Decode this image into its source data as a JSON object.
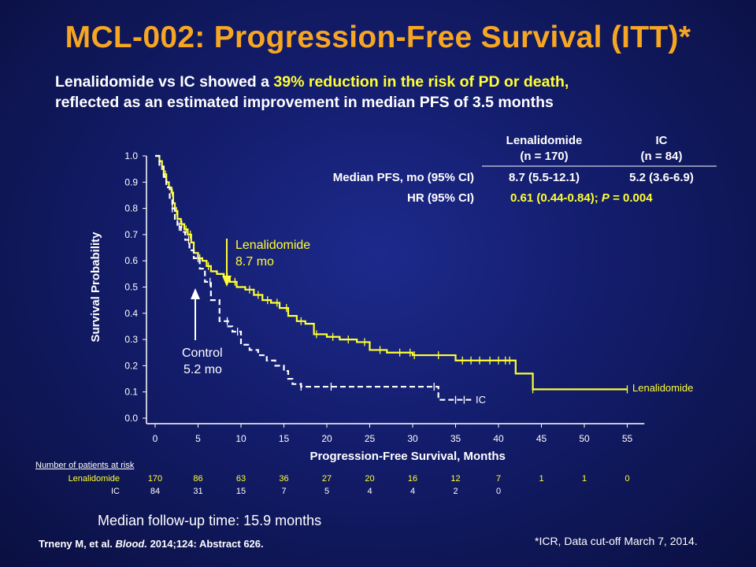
{
  "title": "MCL-002: Progression-Free Survival (ITT)*",
  "subtitle": {
    "line1_pre": "Lenalidomide vs IC showed a ",
    "line1_pct": "39%",
    "line1_post": " reduction in the risk of PD or death,",
    "line2": "reflected as an estimated improvement in median PFS of 3.5 months"
  },
  "stats_table": {
    "col1_header": "Lenalidomide",
    "col1_n": "(n = 170)",
    "col2_header": "IC",
    "col2_n": "(n = 84)",
    "row1_label": "Median PFS, mo (95% CI)",
    "row1_col1": "8.7 (5.5-12.1)",
    "row1_col2": "5.2 (3.6-6.9)",
    "row2_label": "HR (95% CI)",
    "row2_value_pre": "0.61 (0.44-0.84); ",
    "row2_value_p": "P",
    "row2_value_post": " = 0.004"
  },
  "annotations": {
    "len_label": "Lenalidomide",
    "len_value": "8.7 mo",
    "ctrl_label": "Control",
    "ctrl_value": "5.2 mo",
    "len_end_label": "Lenalidomide",
    "ic_end_label": "IC"
  },
  "risk_table": {
    "title": "Number of patients at risk",
    "rows": [
      {
        "label": "Lenalidomide",
        "values": [
          "170",
          "86",
          "63",
          "36",
          "27",
          "20",
          "16",
          "12",
          "7",
          "1",
          "1",
          "0"
        ]
      },
      {
        "label": "IC",
        "values": [
          "84",
          "31",
          "15",
          "7",
          "5",
          "4",
          "4",
          "2",
          "0"
        ]
      }
    ]
  },
  "followup": "Median follow-up time: 15.9 months",
  "citation": {
    "pre": "Trneny M, et al. ",
    "journal": "Blood.",
    "post": " 2014;124: Abstract 626."
  },
  "footnote": "*ICR, Data cut-off March 7, 2014.",
  "colors": {
    "background": "#131c6a",
    "title": "#f6a623",
    "lenalidomide": "#ffff33",
    "ic": "#ffffff"
  },
  "chart_data": {
    "type": "line",
    "xlabel": "Progression-Free Survival, Months",
    "ylabel": "Survival Probability",
    "xlim": [
      0,
      57
    ],
    "ylim": [
      0,
      1.0
    ],
    "x_ticks": [
      0,
      5,
      10,
      15,
      20,
      25,
      30,
      35,
      40,
      45,
      50,
      55
    ],
    "y_ticks": [
      0.0,
      0.1,
      0.2,
      0.3,
      0.4,
      0.5,
      0.6,
      0.7,
      0.8,
      0.9,
      1.0
    ],
    "y_tick_labels": [
      "0.0",
      "0.1",
      "0.2",
      "0.3",
      "0.4",
      "0.5",
      "0.6",
      "0.7",
      "0.8",
      "0.9",
      "1.0"
    ],
    "series": [
      {
        "name": "Lenalidomide",
        "color": "#ffff33",
        "style": "solid",
        "points": [
          [
            0,
            1.0
          ],
          [
            0.5,
            0.98
          ],
          [
            0.8,
            0.95
          ],
          [
            1.0,
            0.93
          ],
          [
            1.3,
            0.9
          ],
          [
            1.6,
            0.88
          ],
          [
            1.9,
            0.86
          ],
          [
            2.1,
            0.82
          ],
          [
            2.3,
            0.79
          ],
          [
            2.6,
            0.76
          ],
          [
            3.0,
            0.74
          ],
          [
            3.4,
            0.72
          ],
          [
            3.8,
            0.7
          ],
          [
            4.2,
            0.67
          ],
          [
            4.5,
            0.63
          ],
          [
            5.0,
            0.61
          ],
          [
            5.5,
            0.6
          ],
          [
            6.0,
            0.58
          ],
          [
            6.5,
            0.56
          ],
          [
            7.2,
            0.55
          ],
          [
            8.0,
            0.54
          ],
          [
            8.7,
            0.52
          ],
          [
            9.5,
            0.5
          ],
          [
            10.5,
            0.49
          ],
          [
            11.5,
            0.47
          ],
          [
            12.5,
            0.45
          ],
          [
            13.5,
            0.44
          ],
          [
            14.5,
            0.42
          ],
          [
            15.5,
            0.39
          ],
          [
            16.5,
            0.37
          ],
          [
            17.5,
            0.36
          ],
          [
            18.5,
            0.32
          ],
          [
            20.0,
            0.31
          ],
          [
            21.5,
            0.3
          ],
          [
            23.5,
            0.29
          ],
          [
            25.0,
            0.26
          ],
          [
            27.0,
            0.25
          ],
          [
            30.0,
            0.24
          ],
          [
            32.0,
            0.24
          ],
          [
            34.0,
            0.24
          ],
          [
            35.0,
            0.22
          ],
          [
            38.0,
            0.22
          ],
          [
            40.0,
            0.22
          ],
          [
            42.0,
            0.17
          ],
          [
            44.0,
            0.11
          ],
          [
            48.0,
            0.11
          ],
          [
            55.0,
            0.11
          ]
        ],
        "censor_x": [
          1.2,
          2.0,
          2.5,
          3.1,
          3.6,
          4.1,
          5.2,
          6.2,
          8.4,
          9.3,
          11.0,
          12.0,
          13.1,
          14.2,
          15.3,
          17.0,
          18.8,
          20.7,
          22.5,
          24.4,
          26.2,
          28.5,
          29.7,
          30.2,
          33.0,
          35.8,
          36.8,
          37.8,
          39.0,
          40.0,
          40.8,
          41.3,
          44.0,
          55.0
        ]
      },
      {
        "name": "IC",
        "color": "#ffffff",
        "style": "dashed",
        "points": [
          [
            0,
            1.0
          ],
          [
            0.5,
            0.96
          ],
          [
            1.0,
            0.92
          ],
          [
            1.3,
            0.88
          ],
          [
            1.7,
            0.84
          ],
          [
            2.0,
            0.8
          ],
          [
            2.3,
            0.76
          ],
          [
            2.6,
            0.73
          ],
          [
            3.0,
            0.71
          ],
          [
            3.5,
            0.68
          ],
          [
            4.0,
            0.64
          ],
          [
            4.5,
            0.61
          ],
          [
            5.2,
            0.57
          ],
          [
            5.8,
            0.52
          ],
          [
            6.5,
            0.45
          ],
          [
            7.5,
            0.37
          ],
          [
            8.5,
            0.35
          ],
          [
            9.0,
            0.33
          ],
          [
            10.0,
            0.28
          ],
          [
            11.0,
            0.26
          ],
          [
            12.0,
            0.24
          ],
          [
            13.0,
            0.22
          ],
          [
            14.0,
            0.2
          ],
          [
            15.0,
            0.18
          ],
          [
            15.5,
            0.15
          ],
          [
            16.0,
            0.13
          ],
          [
            17.0,
            0.12
          ],
          [
            25.0,
            0.12
          ],
          [
            32.0,
            0.12
          ],
          [
            33.0,
            0.07
          ],
          [
            37.0,
            0.07
          ]
        ],
        "censor_x": [
          2.0,
          2.8,
          3.9,
          5.0,
          6.4,
          8.4,
          9.6,
          17.0,
          20.5,
          32.5,
          35.0,
          36.0
        ]
      }
    ]
  }
}
